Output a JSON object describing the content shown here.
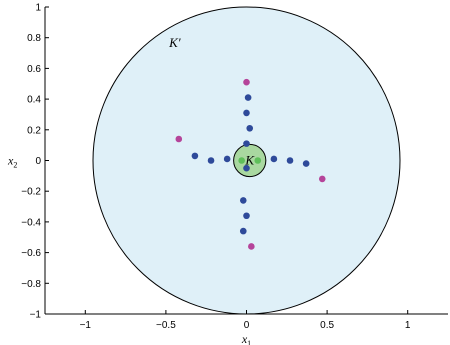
{
  "chart_data": {
    "type": "scatter",
    "title": "",
    "xlabel": "x",
    "xlabel_sub": "1",
    "ylabel": "x",
    "ylabel_sub": "2",
    "xlim": [
      -1.25,
      1.25
    ],
    "ylim": [
      -1,
      1
    ],
    "x_ticks": [
      -1,
      -0.5,
      0,
      0.5,
      1
    ],
    "y_ticks": [
      -1,
      -0.8,
      -0.6,
      -0.4,
      -0.2,
      0,
      0.2,
      0.4,
      0.6,
      0.8,
      1
    ],
    "x_tick_labels": [
      "−1",
      "−0.5",
      "0",
      "0.5",
      "1"
    ],
    "y_tick_labels": [
      "−1",
      "−0.8",
      "−0.6",
      "−0.4",
      "−0.2",
      "0",
      "0.2",
      "0.4",
      "0.6",
      "0.8",
      "1"
    ],
    "grid": false,
    "regions": [
      {
        "label": "K′",
        "center": [
          0,
          0
        ],
        "radius": 1,
        "fill": "#dff0f8",
        "stroke": "#000000"
      },
      {
        "label": "K",
        "center": [
          0.02,
          0
        ],
        "radius": 0.105,
        "fill": "#a9d8a0",
        "stroke": "#000000"
      }
    ],
    "series": [
      {
        "color": "#2e4a9a",
        "points": [
          [
            0.01,
            0.41
          ],
          [
            0.0,
            0.31
          ],
          [
            0.02,
            0.21
          ],
          [
            0.0,
            0.11
          ],
          [
            0.0,
            -0.05
          ],
          [
            -0.02,
            -0.26
          ],
          [
            0.0,
            -0.36
          ],
          [
            -0.02,
            -0.46
          ],
          [
            -0.32,
            0.03
          ],
          [
            -0.22,
            0.0
          ],
          [
            -0.12,
            0.01
          ],
          [
            0.17,
            0.01
          ],
          [
            0.27,
            0.0
          ],
          [
            0.37,
            -0.02
          ]
        ]
      },
      {
        "color": "#5fbf5a",
        "points": [
          [
            -0.03,
            0.0
          ],
          [
            0.07,
            0.0
          ]
        ]
      },
      {
        "color": "#b5449a",
        "points": [
          [
            0.0,
            0.51
          ],
          [
            -0.42,
            0.14
          ],
          [
            0.47,
            -0.12
          ],
          [
            0.03,
            -0.56
          ]
        ]
      }
    ]
  }
}
